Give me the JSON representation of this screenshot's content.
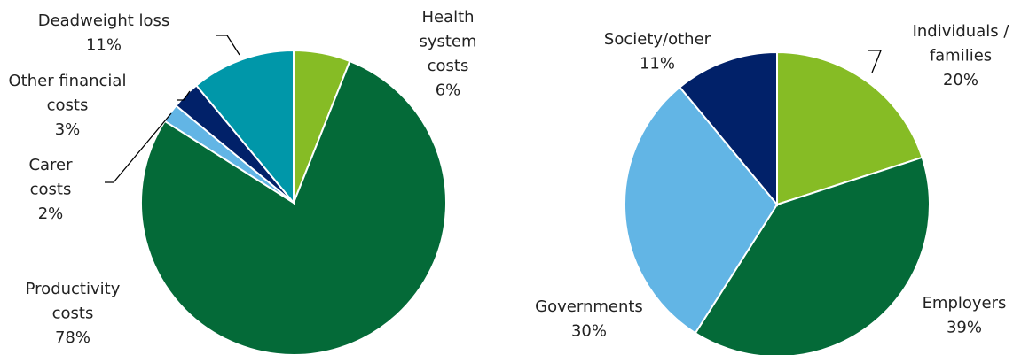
{
  "chart_data": [
    {
      "type": "pie",
      "categories": [
        [
          "Health",
          "system",
          "costs"
        ],
        [
          "Productivity",
          "costs"
        ],
        [
          "Carer",
          "costs"
        ],
        [
          "Other financial",
          "costs"
        ],
        [
          "Deadweight loss"
        ]
      ],
      "values": [
        6,
        78,
        2,
        3,
        11
      ],
      "value_labels": [
        "6%",
        "78%",
        "2%",
        "3%",
        "11%"
      ],
      "colors": [
        "#86bc25",
        "#046a38",
        "#62b5e5",
        "#012169",
        "#0097a9"
      ]
    },
    {
      "type": "pie",
      "categories": [
        [
          "Individuals /",
          "families"
        ],
        [
          "Employers"
        ],
        [
          "Governments"
        ],
        [
          "Society/other"
        ]
      ],
      "values": [
        20,
        39,
        30,
        11
      ],
      "value_labels": [
        "20%",
        "39%",
        "30%",
        "11%"
      ],
      "colors": [
        "#86bc25",
        "#046a38",
        "#62b5e5",
        "#012169"
      ]
    }
  ]
}
